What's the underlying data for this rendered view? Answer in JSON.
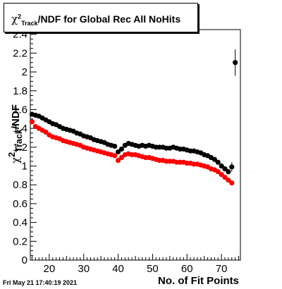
{
  "title": {
    "symbol": "χ",
    "sup": "2",
    "sub": "Track",
    "suffix": "/NDF for Global Rec All NoHits"
  },
  "axis_labels": {
    "x": "No. of Fit Points",
    "y_symbol": "χ",
    "y_sup": "2",
    "y_sub": "Track",
    "y_suffix": "/NDF"
  },
  "datestamp": "Fri May 21 17:40:19 2021",
  "chart_data": {
    "type": "scatter",
    "xlim": [
      14.5,
      75.5
    ],
    "ylim": [
      0,
      2.45
    ],
    "x_ticks": [
      20,
      30,
      40,
      50,
      60,
      70
    ],
    "y_ticks": [
      0,
      0.2,
      0.4,
      0.6,
      0.8,
      1,
      1.2,
      1.4,
      1.6,
      1.8,
      2,
      2.2,
      2.4
    ],
    "y_tick_labels": [
      "0",
      "0.2",
      "0.4",
      "0.6",
      "0.8",
      "1",
      "1.2",
      "1.4",
      "1.6",
      "1.8",
      "2",
      "2.2",
      "2.4"
    ],
    "grid": false,
    "series": [
      {
        "color": "#000000",
        "x": [
          15,
          16,
          17,
          18,
          19,
          20,
          21,
          22,
          23,
          24,
          25,
          26,
          27,
          28,
          29,
          30,
          31,
          32,
          33,
          34,
          35,
          36,
          37,
          38,
          39,
          40,
          41,
          42,
          43,
          44,
          45,
          46,
          47,
          48,
          49,
          50,
          51,
          52,
          53,
          54,
          55,
          56,
          57,
          58,
          59,
          60,
          61,
          62,
          63,
          64,
          65,
          66,
          67,
          68,
          69,
          70,
          71,
          72,
          73,
          74
        ],
        "y": [
          1.55,
          1.54,
          1.53,
          1.51,
          1.49,
          1.47,
          1.45,
          1.44,
          1.42,
          1.4,
          1.39,
          1.38,
          1.37,
          1.35,
          1.34,
          1.32,
          1.31,
          1.3,
          1.28,
          1.27,
          1.26,
          1.25,
          1.23,
          1.22,
          1.21,
          1.15,
          1.18,
          1.22,
          1.24,
          1.23,
          1.22,
          1.21,
          1.22,
          1.21,
          1.22,
          1.21,
          1.2,
          1.2,
          1.2,
          1.19,
          1.19,
          1.2,
          1.19,
          1.18,
          1.18,
          1.17,
          1.16,
          1.16,
          1.15,
          1.14,
          1.12,
          1.11,
          1.09,
          1.07,
          1.04,
          1.0,
          0.97,
          0.94,
          0.99,
          2.1
        ],
        "errors": [
          0.01,
          0.01,
          0.01,
          0.01,
          0.01,
          0.01,
          0.01,
          0.01,
          0.01,
          0.01,
          0.01,
          0.01,
          0.01,
          0.01,
          0.01,
          0.01,
          0.01,
          0.01,
          0.01,
          0.01,
          0.01,
          0.01,
          0.01,
          0.01,
          0.01,
          0.01,
          0.01,
          0.01,
          0.01,
          0.01,
          0.01,
          0.01,
          0.01,
          0.01,
          0.01,
          0.01,
          0.01,
          0.01,
          0.01,
          0.01,
          0.01,
          0.01,
          0.01,
          0.01,
          0.01,
          0.01,
          0.01,
          0.01,
          0.01,
          0.01,
          0.01,
          0.01,
          0.01,
          0.01,
          0.01,
          0.01,
          0.02,
          0.03,
          0.05,
          0.14
        ]
      },
      {
        "color": "#ff0000",
        "x": [
          15,
          16,
          17,
          18,
          19,
          20,
          21,
          22,
          23,
          24,
          25,
          26,
          27,
          28,
          29,
          30,
          31,
          32,
          33,
          34,
          35,
          36,
          37,
          38,
          39,
          40,
          41,
          42,
          43,
          44,
          45,
          46,
          47,
          48,
          49,
          50,
          51,
          52,
          53,
          54,
          55,
          56,
          57,
          58,
          59,
          60,
          61,
          62,
          63,
          64,
          65,
          66,
          67,
          68,
          69,
          70,
          71,
          72,
          73
        ],
        "y": [
          1.47,
          1.42,
          1.4,
          1.38,
          1.36,
          1.33,
          1.31,
          1.3,
          1.29,
          1.27,
          1.26,
          1.25,
          1.24,
          1.23,
          1.22,
          1.2,
          1.19,
          1.18,
          1.17,
          1.16,
          1.15,
          1.14,
          1.13,
          1.12,
          1.11,
          1.06,
          1.09,
          1.12,
          1.13,
          1.12,
          1.12,
          1.11,
          1.1,
          1.09,
          1.09,
          1.08,
          1.07,
          1.06,
          1.06,
          1.05,
          1.05,
          1.05,
          1.04,
          1.04,
          1.04,
          1.03,
          1.03,
          1.02,
          1.02,
          1.01,
          1.0,
          0.99,
          0.97,
          0.96,
          0.94,
          0.91,
          0.88,
          0.85,
          0.82
        ],
        "errors": []
      }
    ]
  }
}
